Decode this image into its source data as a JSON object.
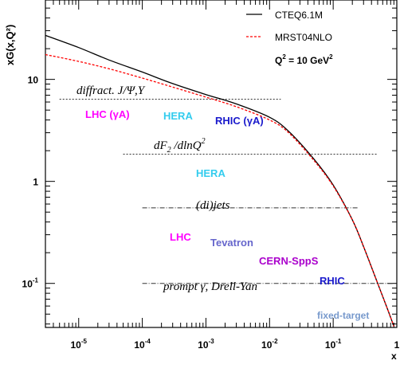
{
  "chart_data": {
    "type": "line",
    "xscale": "log",
    "yscale": "log",
    "xlim": [
      3e-06,
      1
    ],
    "ylim": [
      0.037,
      60
    ],
    "xlabel": "x",
    "ylabel": "xG(x,Q²)",
    "x_ticks": [
      {
        "value": 1e-05,
        "base": "10",
        "exp": "-5"
      },
      {
        "value": 0.0001,
        "base": "10",
        "exp": "-4"
      },
      {
        "value": 0.001,
        "base": "10",
        "exp": "-3"
      },
      {
        "value": 0.01,
        "base": "10",
        "exp": "-2"
      },
      {
        "value": 0.1,
        "base": "10",
        "exp": "-1"
      },
      {
        "value": 1,
        "base": "1",
        "exp": ""
      }
    ],
    "y_ticks": [
      {
        "value": 0.1,
        "base": "10",
        "exp": "-1"
      },
      {
        "value": 1,
        "base": "1",
        "exp": ""
      },
      {
        "value": 10,
        "base": "10",
        "exp": ""
      }
    ],
    "q2_label": {
      "prefix": "Q",
      "sup": "2",
      "suffix": " = 10 GeV",
      "sup2": "2"
    },
    "series": [
      {
        "name": "CTEQ6.1M",
        "color": "#000000",
        "style": "solid",
        "x": [
          3e-06,
          1e-05,
          3e-05,
          0.0001,
          0.0003,
          0.001,
          0.003,
          0.01,
          0.02,
          0.05,
          0.1,
          0.2,
          0.3,
          0.5,
          0.7,
          0.9
        ],
        "y": [
          27,
          20.5,
          15.5,
          11.8,
          9.1,
          7.1,
          5.75,
          4.25,
          3.1,
          1.65,
          0.92,
          0.42,
          0.23,
          0.1,
          0.058,
          0.038
        ]
      },
      {
        "name": "MRST04NLO",
        "color": "#ff0000",
        "style": "dashed",
        "x": [
          3e-06,
          1e-05,
          3e-05,
          0.0001,
          0.0003,
          0.001,
          0.003,
          0.01,
          0.02,
          0.05,
          0.1,
          0.2,
          0.3,
          0.5,
          0.7,
          0.9
        ],
        "y": [
          17.5,
          15,
          12.7,
          10.3,
          8.4,
          6.7,
          5.4,
          4.0,
          3.0,
          1.6,
          0.9,
          0.42,
          0.23,
          0.1,
          0.058,
          0.038
        ]
      }
    ],
    "coverage_lines": [
      {
        "label": "diffract. J/Ψ,Υ",
        "y": 6.4,
        "x": [
          5e-06,
          0.015
        ],
        "style": "dotted"
      },
      {
        "label": "dF2/dlnQ2",
        "y": 1.85,
        "x": [
          5e-05,
          0.5
        ],
        "style": "dotted"
      },
      {
        "label": "(di)jets",
        "y": 0.55,
        "x": [
          0.0001,
          0.25
        ],
        "style": "dashdot"
      },
      {
        "label": "prompt γ, Drell-Yan",
        "y": 0.1,
        "x": [
          0.0001,
          0.9
        ],
        "style": "dashdot"
      }
    ],
    "math_labels": {
      "diffract": "diffract. J/Ψ,Υ",
      "dF2_dF": "dF",
      "dF2_sub": "2",
      "dF2_mid": " /dlnQ",
      "dF2_sup": "2",
      "dijets": "(di)jets",
      "prompt": "prompt γ, Drell-Yan"
    },
    "experiments": [
      {
        "label": "LHC (γA)",
        "color": "#ff00ff"
      },
      {
        "label": "HERA",
        "color": "#33ccee"
      },
      {
        "label": "RHIC (γA)",
        "color": "#1a1acc"
      },
      {
        "label": "HERA",
        "color": "#33ccee"
      },
      {
        "label": "LHC",
        "color": "#ff00ff"
      },
      {
        "label": "Tevatron",
        "color": "#6666cc"
      },
      {
        "label": "CERN-SppS",
        "color": "#aa00cc"
      },
      {
        "label": "RHIC",
        "color": "#1a1acc"
      },
      {
        "label": "fixed-target",
        "color": "#7799cc"
      }
    ]
  }
}
